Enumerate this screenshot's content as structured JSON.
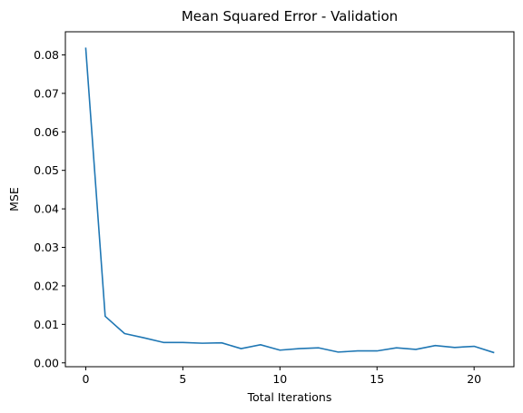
{
  "chart_data": {
    "type": "line",
    "title": "Mean Squared Error - Validation",
    "xlabel": "Total Iterations",
    "ylabel": "MSE",
    "xlim": [
      -1.05,
      22.05
    ],
    "ylim": [
      -0.001,
      0.086
    ],
    "xticks": [
      0,
      5,
      10,
      15,
      20
    ],
    "yticks": [
      0.0,
      0.01,
      0.02,
      0.03,
      0.04,
      0.05,
      0.06,
      0.07,
      0.08
    ],
    "grid": false,
    "line_color": "#1f77b4",
    "x": [
      0,
      1,
      2,
      3,
      4,
      5,
      6,
      7,
      8,
      9,
      10,
      11,
      12,
      13,
      14,
      15,
      16,
      17,
      18,
      19,
      20,
      21
    ],
    "values": [
      0.0817,
      0.0121,
      0.0076,
      0.0065,
      0.0053,
      0.0053,
      0.0051,
      0.0052,
      0.0037,
      0.0047,
      0.0033,
      0.0037,
      0.0039,
      0.0028,
      0.0031,
      0.0031,
      0.0039,
      0.0035,
      0.0045,
      0.004,
      0.0043,
      0.0027
    ]
  }
}
